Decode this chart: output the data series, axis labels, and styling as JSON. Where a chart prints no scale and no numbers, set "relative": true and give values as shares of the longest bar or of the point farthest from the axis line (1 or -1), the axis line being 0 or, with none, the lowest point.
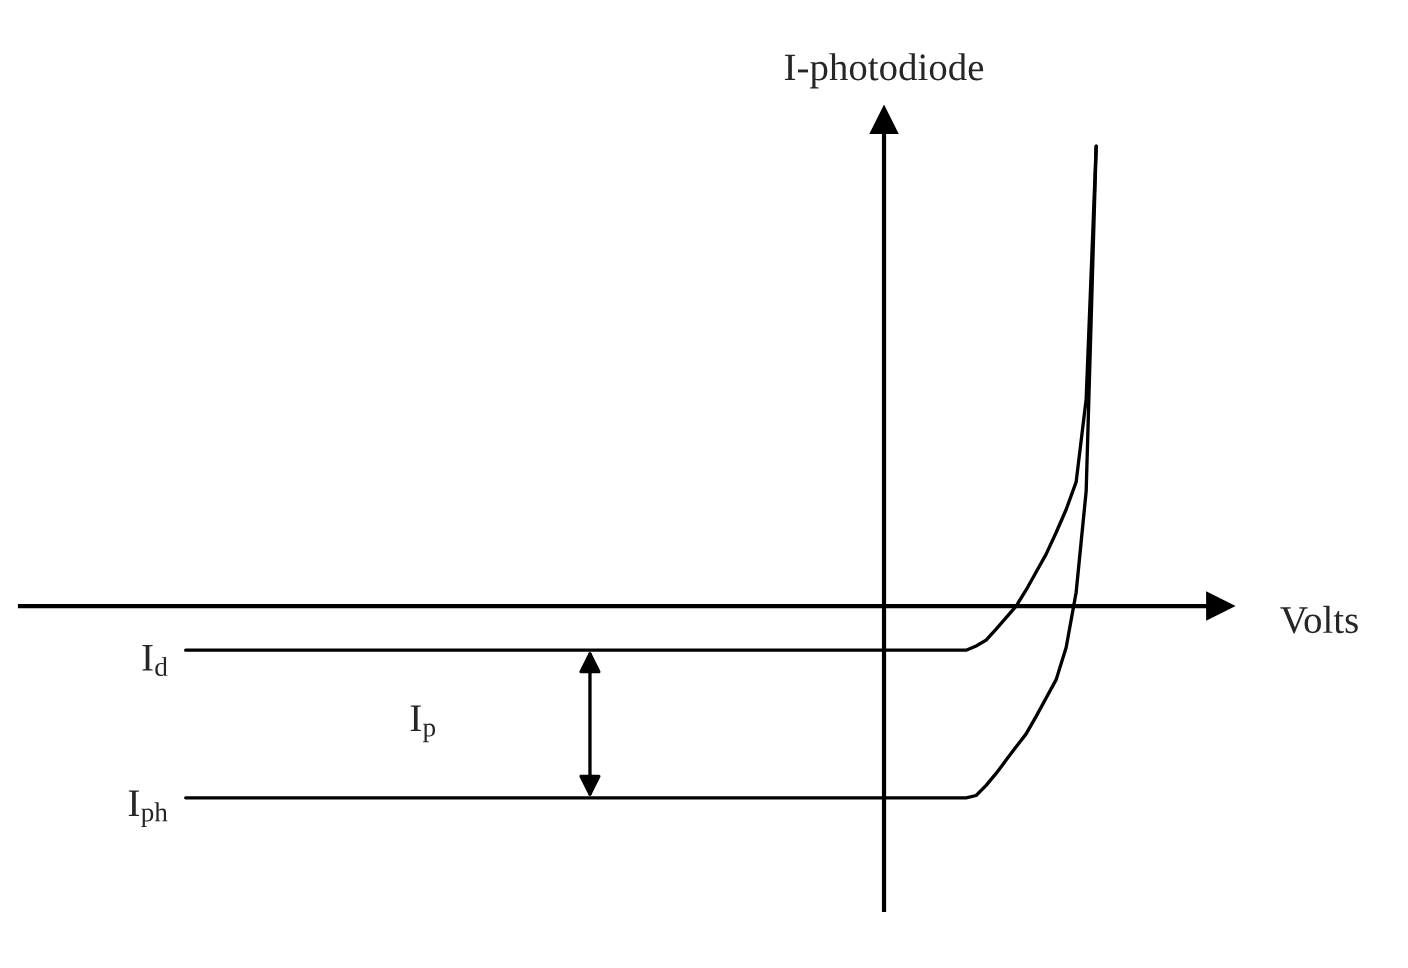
{
  "chart_data": {
    "type": "line",
    "relative": true,
    "xlabel": "Volts",
    "ylabel": "I-photodiode",
    "ylim": [
      -0.661,
      1.057
    ],
    "marker": "none",
    "line_style": "solid",
    "categories": [
      null,
      null,
      null,
      null,
      null,
      null,
      null,
      null,
      null,
      null,
      null,
      null,
      null,
      null,
      null,
      null,
      null,
      null,
      null,
      null,
      null,
      null,
      null,
      null,
      null,
      null,
      null,
      null,
      null,
      null,
      null,
      null,
      null,
      null,
      null,
      null,
      null,
      null,
      null,
      null,
      null,
      null,
      null,
      null,
      null,
      null,
      null,
      null,
      null,
      null,
      null,
      null,
      null,
      null,
      null,
      null,
      null,
      null,
      null,
      null,
      null,
      null,
      null,
      null,
      null,
      null,
      null,
      null,
      null,
      null,
      null,
      null,
      null,
      null,
      null,
      null,
      null,
      null,
      null,
      null,
      null,
      null,
      null,
      null,
      null,
      null,
      null,
      null,
      null,
      null,
      null,
      null
    ],
    "series": [
      {
        "name": "I$_{d}$",
        "color": "#000000",
        "values": [
          -0.096,
          -0.096,
          -0.096,
          -0.096,
          -0.096,
          -0.096,
          -0.096,
          -0.096,
          -0.096,
          -0.096,
          -0.096,
          -0.096,
          -0.096,
          -0.096,
          -0.096,
          -0.096,
          -0.096,
          -0.096,
          -0.096,
          -0.096,
          -0.096,
          -0.096,
          -0.096,
          -0.096,
          -0.096,
          -0.096,
          -0.096,
          -0.096,
          -0.096,
          -0.096,
          -0.096,
          -0.096,
          -0.096,
          -0.096,
          -0.096,
          -0.096,
          -0.096,
          -0.096,
          -0.096,
          -0.096,
          -0.096,
          -0.096,
          -0.096,
          -0.096,
          -0.096,
          -0.096,
          -0.096,
          -0.096,
          -0.096,
          -0.096,
          -0.096,
          -0.096,
          -0.096,
          -0.096,
          -0.096,
          -0.096,
          -0.096,
          -0.096,
          -0.096,
          -0.096,
          -0.096,
          -0.096,
          -0.096,
          -0.096,
          -0.096,
          -0.096,
          -0.096,
          -0.096,
          -0.096,
          -0.096,
          -0.096,
          -0.096,
          -0.096,
          -0.096,
          -0.096,
          -0.096,
          -0.096,
          -0.096,
          -0.096,
          -0.087,
          -0.074,
          -0.05,
          -0.025,
          0,
          0.035,
          0.074,
          0.113,
          0.16,
          0.21,
          0.27,
          0.45,
          1.0
        ]
      },
      {
        "name": "I$_{ph}$",
        "color": "#000000",
        "values": [
          -0.417,
          -0.417,
          -0.417,
          -0.417,
          -0.417,
          -0.417,
          -0.417,
          -0.417,
          -0.417,
          -0.417,
          -0.417,
          -0.417,
          -0.417,
          -0.417,
          -0.417,
          -0.417,
          -0.417,
          -0.417,
          -0.417,
          -0.417,
          -0.417,
          -0.417,
          -0.417,
          -0.417,
          -0.417,
          -0.417,
          -0.417,
          -0.417,
          -0.417,
          -0.417,
          -0.417,
          -0.417,
          -0.417,
          -0.417,
          -0.417,
          -0.417,
          -0.417,
          -0.417,
          -0.417,
          -0.417,
          -0.417,
          -0.417,
          -0.417,
          -0.417,
          -0.417,
          -0.417,
          -0.417,
          -0.417,
          -0.417,
          -0.417,
          -0.417,
          -0.417,
          -0.417,
          -0.417,
          -0.417,
          -0.417,
          -0.417,
          -0.417,
          -0.417,
          -0.417,
          -0.417,
          -0.417,
          -0.417,
          -0.417,
          -0.417,
          -0.417,
          -0.417,
          -0.417,
          -0.417,
          -0.417,
          -0.417,
          -0.417,
          -0.417,
          -0.417,
          -0.417,
          -0.417,
          -0.417,
          -0.417,
          -0.417,
          -0.412,
          -0.39,
          -0.364,
          -0.335,
          -0.306,
          -0.278,
          -0.24,
          -0.2,
          -0.16,
          -0.09,
          0.03,
          0.25,
          1.0
        ]
      }
    ],
    "annotations": [
      "I$_{p}$"
    ]
  }
}
